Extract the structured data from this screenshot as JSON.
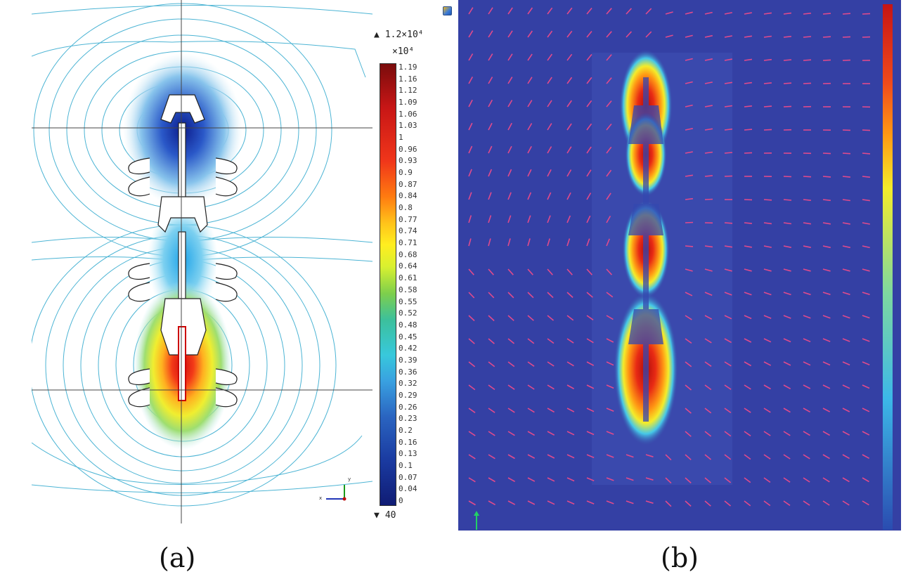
{
  "figure": {
    "panel_a": {
      "label": "(a)",
      "colorbar": {
        "max_label": "1.2×10⁴",
        "exponent_label": "×10⁴",
        "min_label": "40",
        "max_marker": "▲",
        "min_marker": "▼",
        "ticks": [
          "1.19",
          "1.16",
          "1.12",
          "1.09",
          "1.06",
          "1.03",
          "1",
          "0.96",
          "0.93",
          "0.9",
          "0.87",
          "0.84",
          "0.8",
          "0.77",
          "0.74",
          "0.71",
          "0.68",
          "0.64",
          "0.61",
          "0.58",
          "0.55",
          "0.52",
          "0.48",
          "0.45",
          "0.42",
          "0.39",
          "0.36",
          "0.32",
          "0.29",
          "0.26",
          "0.23",
          "0.2",
          "0.16",
          "0.13",
          "0.1",
          "0.07",
          "0.04",
          "0"
        ]
      },
      "axis_triad": {
        "x": "x",
        "y": "y"
      }
    },
    "panel_b": {
      "label": "(b)"
    }
  }
}
